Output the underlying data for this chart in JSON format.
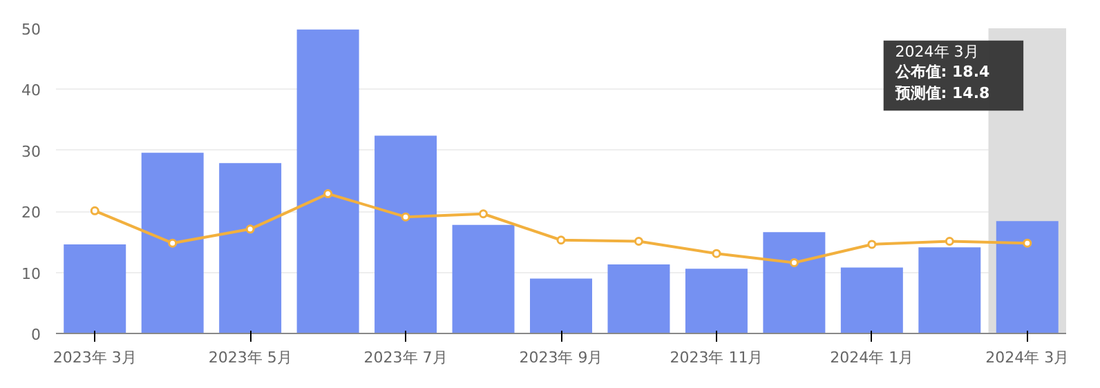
{
  "chart_data": {
    "type": "bar",
    "categories": [
      "2023年 3月",
      null,
      "2023年 5月",
      null,
      "2023年 7月",
      null,
      "2023年 9月",
      null,
      "2023年 11月",
      null,
      "2024年 1月",
      null,
      "2024年 3月"
    ],
    "series": [
      {
        "color": "#7591f2",
        "values": [
          14.6,
          29.6,
          27.9,
          49.8,
          32.4,
          17.8,
          9.0,
          11.3,
          10.6,
          16.6,
          10.8,
          14.1,
          18.4
        ]
      },
      {
        "type": "line",
        "color": "#f2b03e",
        "marker": "circle",
        "values": [
          20.1,
          14.8,
          17.1,
          22.9,
          19.1,
          19.6,
          15.3,
          15.1,
          13.1,
          11.6,
          14.6,
          15.1,
          14.8
        ]
      }
    ],
    "ylim": [
      0,
      50
    ],
    "yticks": [
      0,
      10,
      20,
      30,
      40,
      50
    ],
    "grid": "y",
    "annotations": [
      "2024年 3月",
      "公布值: 18.4",
      "预测值: 14.8"
    ],
    "bands": [
      {
        "axis": "x",
        "from": "2024年 3月",
        "to": "2024年 3月",
        "color": "#dddddd"
      }
    ]
  }
}
